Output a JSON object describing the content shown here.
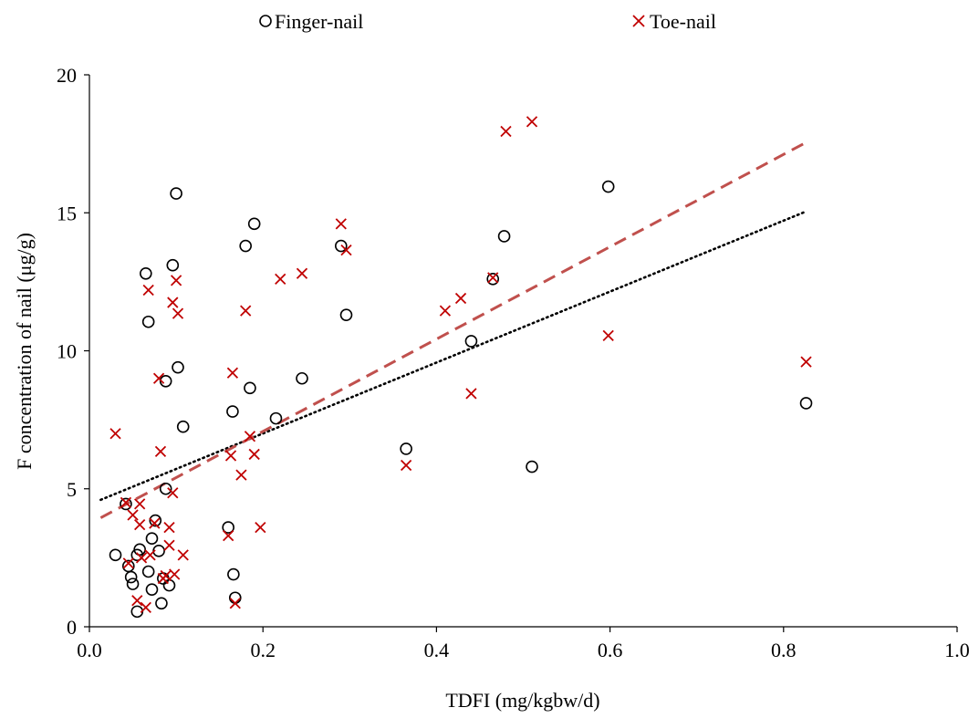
{
  "chart_data": {
    "type": "scatter",
    "xlabel": "TDFI (mg/kgbw/d)",
    "ylabel": "F concentration of nail (μg/g)",
    "xlim": [
      0.0,
      1.0
    ],
    "ylim": [
      0,
      20
    ],
    "xticks": [
      "0.0",
      "0.2",
      "0.4",
      "0.6",
      "0.8",
      "1.0"
    ],
    "xtick_values": [
      0.0,
      0.2,
      0.4,
      0.6,
      0.8,
      1.0
    ],
    "yticks": [
      "0",
      "5",
      "10",
      "15",
      "20"
    ],
    "ytick_values": [
      0,
      5,
      10,
      15,
      20
    ],
    "grid": false,
    "legend_position": "top",
    "series": [
      {
        "name": "Finger-nail",
        "marker": "circle",
        "color": "#000000",
        "points": [
          [
            0.03,
            2.6
          ],
          [
            0.042,
            4.45
          ],
          [
            0.045,
            2.2
          ],
          [
            0.048,
            1.8
          ],
          [
            0.05,
            1.55
          ],
          [
            0.055,
            2.6
          ],
          [
            0.055,
            0.55
          ],
          [
            0.058,
            2.8
          ],
          [
            0.065,
            12.8
          ],
          [
            0.068,
            2.0
          ],
          [
            0.068,
            11.05
          ],
          [
            0.072,
            1.35
          ],
          [
            0.072,
            3.2
          ],
          [
            0.076,
            3.85
          ],
          [
            0.08,
            2.75
          ],
          [
            0.083,
            0.85
          ],
          [
            0.085,
            1.75
          ],
          [
            0.088,
            8.9
          ],
          [
            0.088,
            5.0
          ],
          [
            0.092,
            1.5
          ],
          [
            0.096,
            13.1
          ],
          [
            0.1,
            15.7
          ],
          [
            0.102,
            9.4
          ],
          [
            0.108,
            7.25
          ],
          [
            0.16,
            3.6
          ],
          [
            0.165,
            7.8
          ],
          [
            0.166,
            1.9
          ],
          [
            0.168,
            1.05
          ],
          [
            0.18,
            13.8
          ],
          [
            0.185,
            8.65
          ],
          [
            0.19,
            14.6
          ],
          [
            0.215,
            7.55
          ],
          [
            0.245,
            9.0
          ],
          [
            0.29,
            13.8
          ],
          [
            0.296,
            11.3
          ],
          [
            0.365,
            6.45
          ],
          [
            0.44,
            10.35
          ],
          [
            0.465,
            12.6
          ],
          [
            0.478,
            14.15
          ],
          [
            0.51,
            5.8
          ],
          [
            0.598,
            15.95
          ],
          [
            0.826,
            8.1
          ]
        ]
      },
      {
        "name": "Toe-nail",
        "marker": "cross",
        "color": "#C00000",
        "points": [
          [
            0.03,
            7.0
          ],
          [
            0.042,
            4.5
          ],
          [
            0.045,
            2.3
          ],
          [
            0.05,
            4.05
          ],
          [
            0.055,
            0.95
          ],
          [
            0.058,
            4.45
          ],
          [
            0.058,
            3.7
          ],
          [
            0.06,
            2.5
          ],
          [
            0.065,
            0.7
          ],
          [
            0.068,
            12.2
          ],
          [
            0.07,
            2.6
          ],
          [
            0.075,
            3.75
          ],
          [
            0.08,
            9.0
          ],
          [
            0.082,
            6.35
          ],
          [
            0.085,
            1.75
          ],
          [
            0.088,
            1.85
          ],
          [
            0.092,
            3.6
          ],
          [
            0.092,
            2.95
          ],
          [
            0.096,
            11.75
          ],
          [
            0.096,
            4.85
          ],
          [
            0.098,
            1.9
          ],
          [
            0.1,
            12.55
          ],
          [
            0.102,
            11.35
          ],
          [
            0.108,
            2.6
          ],
          [
            0.16,
            3.3
          ],
          [
            0.163,
            6.2
          ],
          [
            0.165,
            9.2
          ],
          [
            0.168,
            0.85
          ],
          [
            0.175,
            5.5
          ],
          [
            0.18,
            11.45
          ],
          [
            0.185,
            6.9
          ],
          [
            0.19,
            6.25
          ],
          [
            0.197,
            3.6
          ],
          [
            0.22,
            12.6
          ],
          [
            0.245,
            12.8
          ],
          [
            0.29,
            14.6
          ],
          [
            0.296,
            13.65
          ],
          [
            0.365,
            5.85
          ],
          [
            0.41,
            11.45
          ],
          [
            0.428,
            11.9
          ],
          [
            0.44,
            8.45
          ],
          [
            0.465,
            12.65
          ],
          [
            0.48,
            17.95
          ],
          [
            0.51,
            18.3
          ],
          [
            0.598,
            10.55
          ],
          [
            0.826,
            9.6
          ]
        ]
      }
    ],
    "trendlines": [
      {
        "series": "Finger-nail",
        "style": "dotted",
        "color": "#000000",
        "x": [
          0.013,
          0.826
        ],
        "y": [
          4.6,
          15.05
        ]
      },
      {
        "series": "Toe-nail",
        "style": "dashed",
        "color": "#C0504D",
        "x": [
          0.013,
          0.826
        ],
        "y": [
          3.95,
          17.55
        ]
      }
    ]
  }
}
